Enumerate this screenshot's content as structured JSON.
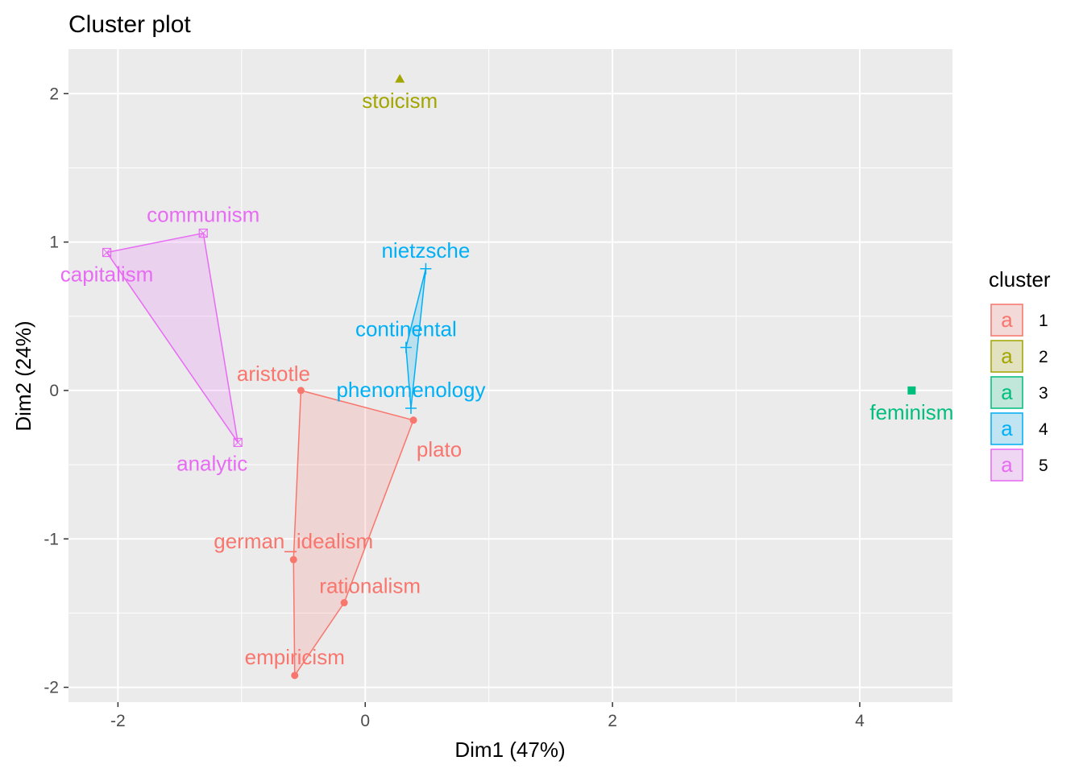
{
  "chart_data": {
    "type": "scatter",
    "title": "Cluster plot",
    "xlabel": "Dim1 (47%)",
    "ylabel": "Dim2 (24%)",
    "xlim": [
      -2.4,
      4.75
    ],
    "ylim": [
      -2.1,
      2.3
    ],
    "x_ticks": [
      -2,
      0,
      2,
      4
    ],
    "y_ticks": [
      -2,
      -1,
      0,
      1,
      2
    ],
    "x_tick_labels": [
      "-2",
      "0",
      "2",
      "4"
    ],
    "y_tick_labels": [
      "-2",
      "-1",
      "0",
      "1",
      "2"
    ],
    "grid": true,
    "legend": {
      "title": "cluster",
      "placement": "right",
      "glyph": "a",
      "entries": [
        {
          "label": "1",
          "color": "#F8766D"
        },
        {
          "label": "2",
          "color": "#A3A500"
        },
        {
          "label": "3",
          "color": "#00BF7D"
        },
        {
          "label": "4",
          "color": "#00B0F6"
        },
        {
          "label": "5",
          "color": "#E76BF3"
        }
      ]
    },
    "clusters": [
      {
        "name": "1",
        "color": "#F8766D",
        "marker": "circle",
        "hull": [
          "aristotle",
          "plato",
          "rationalism",
          "empiricism",
          "german_idealism"
        ],
        "points": [
          {
            "label": "aristotle",
            "x": -0.52,
            "y": 0.0,
            "label_pos": "above-left"
          },
          {
            "label": "plato",
            "x": 0.39,
            "y": -0.2,
            "label_pos": "below-right"
          },
          {
            "label": "german_idealism",
            "x": -0.58,
            "y": -1.14,
            "label_pos": "above"
          },
          {
            "label": "rationalism",
            "x": -0.17,
            "y": -1.43,
            "label_pos": "above-right"
          },
          {
            "label": "empiricism",
            "x": -0.57,
            "y": -1.92,
            "label_pos": "above"
          }
        ]
      },
      {
        "name": "2",
        "color": "#A3A500",
        "marker": "triangle",
        "hull": [],
        "points": [
          {
            "label": "stoicism",
            "x": 0.28,
            "y": 2.1,
            "label_pos": "below"
          }
        ]
      },
      {
        "name": "3",
        "color": "#00BF7D",
        "marker": "square",
        "hull": [],
        "points": [
          {
            "label": "feminism",
            "x": 4.42,
            "y": 0.0,
            "label_pos": "below"
          }
        ]
      },
      {
        "name": "4",
        "color": "#00B0F6",
        "marker": "plus",
        "hull": [
          "nietzsche",
          "continental",
          "phenomenology"
        ],
        "points": [
          {
            "label": "nietzsche",
            "x": 0.49,
            "y": 0.82,
            "label_pos": "above"
          },
          {
            "label": "continental",
            "x": 0.33,
            "y": 0.29,
            "label_pos": "above"
          },
          {
            "label": "phenomenology",
            "x": 0.37,
            "y": -0.12,
            "label_pos": "above"
          }
        ]
      },
      {
        "name": "5",
        "color": "#E76BF3",
        "marker": "square-cross",
        "hull": [
          "capitalism",
          "communism",
          "analytic"
        ],
        "points": [
          {
            "label": "communism",
            "x": -1.31,
            "y": 1.06,
            "label_pos": "above"
          },
          {
            "label": "capitalism",
            "x": -2.09,
            "y": 0.93,
            "label_pos": "below"
          },
          {
            "label": "analytic",
            "x": -1.03,
            "y": -0.35,
            "label_pos": "below-left"
          }
        ]
      }
    ]
  }
}
